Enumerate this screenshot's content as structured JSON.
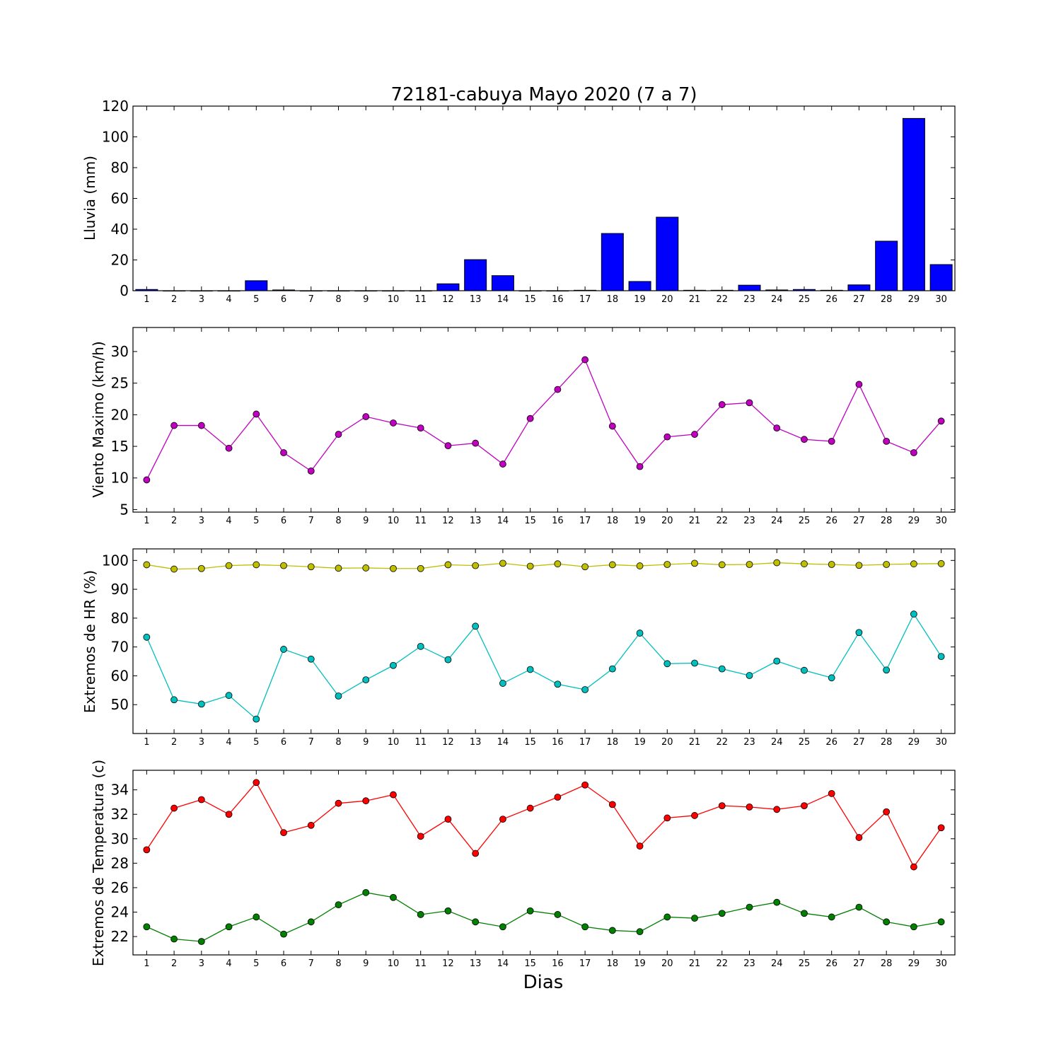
{
  "figure": {
    "title": "72181-cabuya Mayo 2020  (7 a 7)",
    "xlabel": "Dias"
  },
  "chart_data": [
    {
      "type": "bar",
      "ylabel": "Lluvia (mm)",
      "categories": [
        "1",
        "2",
        "3",
        "4",
        "5",
        "6",
        "7",
        "8",
        "9",
        "10",
        "11",
        "12",
        "13",
        "14",
        "15",
        "16",
        "17",
        "18",
        "19",
        "20",
        "21",
        "22",
        "23",
        "24",
        "25",
        "26",
        "27",
        "28",
        "29",
        "30"
      ],
      "ylim": [
        0,
        120
      ],
      "yticks": [
        0,
        20,
        40,
        60,
        80,
        100,
        120
      ],
      "series": [
        {
          "color": "#0000ff",
          "values": [
            0.8,
            0,
            0,
            0,
            6.5,
            0.5,
            0,
            0,
            0,
            0,
            0,
            4.5,
            20.2,
            9.8,
            0,
            0,
            0.3,
            37.2,
            6,
            47.8,
            0.3,
            0.3,
            3.6,
            0.5,
            0.8,
            0.3,
            3.8,
            32.2,
            112,
            17
          ]
        }
      ],
      "grid": false
    },
    {
      "type": "line",
      "ylabel": "Viento Maximo (km/h)",
      "categories": [
        "1",
        "2",
        "3",
        "4",
        "5",
        "6",
        "7",
        "8",
        "9",
        "10",
        "11",
        "12",
        "13",
        "14",
        "15",
        "16",
        "17",
        "18",
        "19",
        "20",
        "21",
        "22",
        "23",
        "24",
        "25",
        "26",
        "27",
        "28",
        "29",
        "30"
      ],
      "ylim": [
        4.6,
        33.8
      ],
      "yticks": [
        5,
        10,
        15,
        20,
        25,
        30
      ],
      "series": [
        {
          "color": "#bf00bf",
          "values": [
            9.7,
            18.3,
            18.3,
            14.7,
            20.1,
            14,
            11.1,
            16.9,
            19.7,
            18.7,
            17.9,
            15.1,
            15.5,
            12.2,
            19.4,
            24,
            28.7,
            18.2,
            11.8,
            16.5,
            16.9,
            21.6,
            21.9,
            17.9,
            16.1,
            15.8,
            24.8,
            15.8,
            14,
            19
          ]
        }
      ],
      "grid": false
    },
    {
      "type": "line",
      "ylabel": "Extremos de HR (%)",
      "categories": [
        "1",
        "2",
        "3",
        "4",
        "5",
        "6",
        "7",
        "8",
        "9",
        "10",
        "11",
        "12",
        "13",
        "14",
        "15",
        "16",
        "17",
        "18",
        "19",
        "20",
        "21",
        "22",
        "23",
        "24",
        "25",
        "26",
        "27",
        "28",
        "29",
        "30"
      ],
      "ylim": [
        40,
        104
      ],
      "yticks": [
        50,
        60,
        70,
        80,
        90,
        100
      ],
      "series": [
        {
          "color": "#bfbf00",
          "values": [
            98.5,
            97,
            97.2,
            98.2,
            98.5,
            98.2,
            97.8,
            97.3,
            97.4,
            97.2,
            97.2,
            98.5,
            98.2,
            99,
            98,
            98.8,
            97.8,
            98.5,
            98.1,
            98.6,
            99,
            98.5,
            98.6,
            99.2,
            98.8,
            98.6,
            98.3,
            98.6,
            98.8,
            98.9
          ]
        },
        {
          "color": "#00bfbf",
          "values": [
            73.4,
            51.7,
            50.2,
            53.2,
            45,
            69.2,
            65.8,
            53,
            58.6,
            63.6,
            70.2,
            65.6,
            77.2,
            57.4,
            62.2,
            57.1,
            55.2,
            62.4,
            74.8,
            64.2,
            64.4,
            62.4,
            60.1,
            65.1,
            61.9,
            59.3,
            75,
            62,
            81.4,
            66.7
          ]
        }
      ],
      "grid": false
    },
    {
      "type": "line",
      "ylabel": "Extremos de Temperatura (c)",
      "categories": [
        "1",
        "2",
        "3",
        "4",
        "5",
        "6",
        "7",
        "8",
        "9",
        "10",
        "11",
        "12",
        "13",
        "14",
        "15",
        "16",
        "17",
        "18",
        "19",
        "20",
        "21",
        "22",
        "23",
        "24",
        "25",
        "26",
        "27",
        "28",
        "29",
        "30"
      ],
      "ylim": [
        20.5,
        35.6
      ],
      "yticks": [
        22,
        24,
        26,
        28,
        30,
        32,
        34
      ],
      "series": [
        {
          "color": "#ff0000",
          "values": [
            29.1,
            32.5,
            33.2,
            32,
            34.6,
            30.5,
            31.1,
            32.9,
            33.1,
            33.6,
            30.2,
            31.6,
            28.8,
            31.6,
            32.5,
            33.4,
            34.4,
            32.8,
            29.4,
            31.7,
            31.9,
            32.7,
            32.6,
            32.4,
            32.7,
            33.7,
            30.1,
            32.2,
            27.7,
            30.9
          ]
        },
        {
          "color": "#007f00",
          "values": [
            22.8,
            21.8,
            21.6,
            22.8,
            23.6,
            22.2,
            23.2,
            24.6,
            25.6,
            25.2,
            23.8,
            24.1,
            23.2,
            22.8,
            24.1,
            23.8,
            22.8,
            22.5,
            22.4,
            23.6,
            23.5,
            23.9,
            24.4,
            24.8,
            23.9,
            23.6,
            24.4,
            23.2,
            22.8,
            23.2
          ]
        }
      ],
      "grid": false
    }
  ]
}
